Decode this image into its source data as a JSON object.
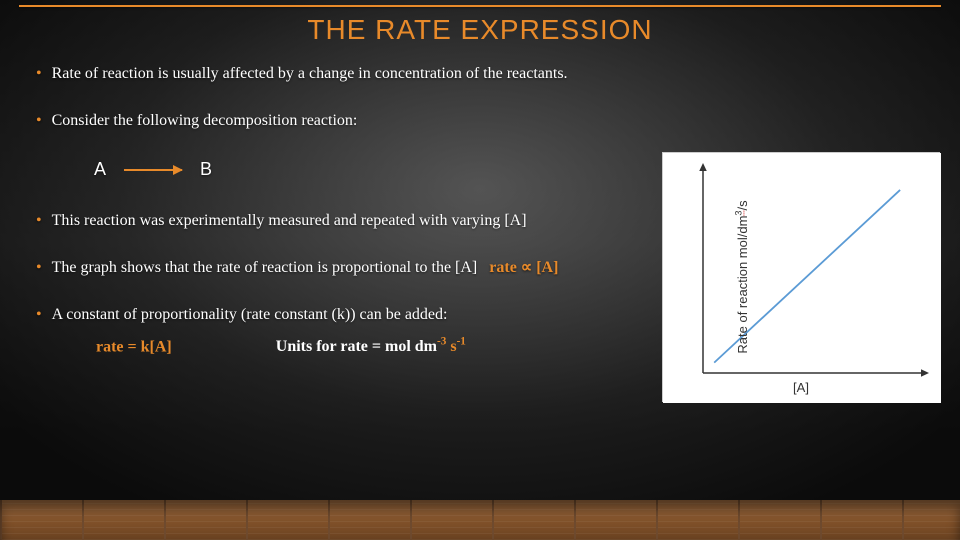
{
  "colors": {
    "accent": "#e88a2a",
    "text": "#ffffff",
    "chart_line": "#5b9bd5",
    "chart_axis": "#333333",
    "chart_bg": "#ffffff"
  },
  "title": "THE RATE EXPRESSION",
  "bullets": {
    "b1": "Rate of reaction is usually affected by a change in concentration of the reactants.",
    "b2": "Consider the following decomposition reaction:",
    "b3": "This reaction was experimentally measured and repeated with varying [A]",
    "b4_lead": "The graph shows that the rate of reaction is proportional to the [A]",
    "b4_formula": "rate ∝ [A]",
    "b5": "A constant of proportionality (rate constant (k)) can be added:",
    "b5_formula": "rate = k[A]",
    "b5_units_label": "Units for rate = mol dm",
    "b5_units_exp1": "-3",
    "b5_units_mid": " s",
    "b5_units_exp2": "-1"
  },
  "reaction": {
    "lhs": "A",
    "rhs": "B"
  },
  "chart": {
    "type": "line",
    "xlabel": "[A]",
    "ylabel_pre": "Rate of reaction mol/dm",
    "ylabel_sup": "3",
    "ylabel_post": "/s",
    "background": "#ffffff",
    "axis_color": "#333333",
    "line_color": "#5b9bd5",
    "line_width": 1.8,
    "points": [
      {
        "x": 0.05,
        "y": 0.05
      },
      {
        "x": 0.88,
        "y": 0.88
      }
    ],
    "xlim": [
      0,
      1
    ],
    "ylim": [
      0,
      1
    ],
    "arrow_size": 6
  }
}
